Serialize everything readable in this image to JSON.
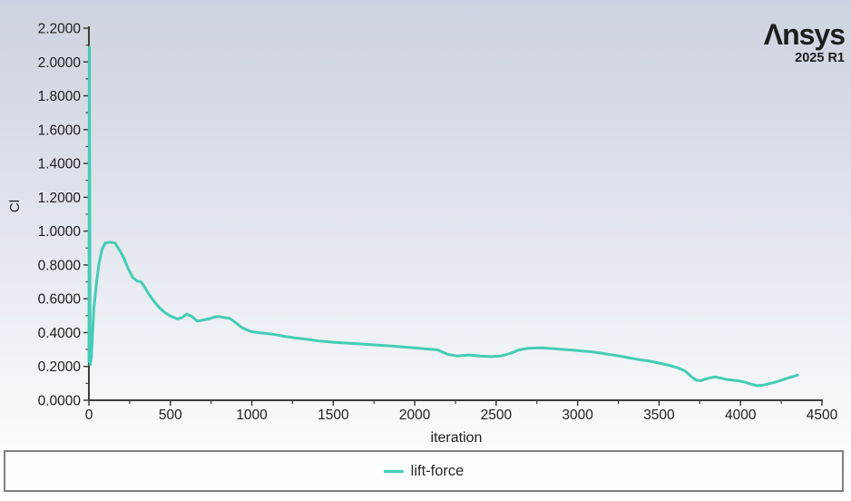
{
  "branding": {
    "name": "Ansys",
    "release": "2025 R1"
  },
  "chart_data": {
    "type": "line",
    "title": "",
    "xlabel": "iteration",
    "ylabel": "Cl",
    "xlim": [
      0,
      4500
    ],
    "ylim": [
      0,
      2.2
    ],
    "x_ticks": [
      "0",
      "500",
      "1000",
      "1500",
      "2000",
      "2500",
      "3000",
      "3500",
      "4000",
      "4500"
    ],
    "y_ticks": [
      "0.0000",
      "0.2000",
      "0.4000",
      "0.6000",
      "0.8000",
      "1.0000",
      "1.2000",
      "1.4000",
      "1.6000",
      "1.8000",
      "2.0000",
      "2.2000"
    ],
    "grid": false,
    "legend_position": "bottom",
    "axis_color": "#3c3c3c",
    "series": [
      {
        "name": "lift-force",
        "color": "#45ccb4",
        "points": [
          [
            0,
            0.23
          ],
          [
            3,
            2.087
          ],
          [
            8,
            0.21
          ],
          [
            15,
            0.25
          ],
          [
            30,
            0.54
          ],
          [
            45,
            0.68
          ],
          [
            60,
            0.8
          ],
          [
            80,
            0.89
          ],
          [
            100,
            0.93
          ],
          [
            130,
            0.935
          ],
          [
            160,
            0.93
          ],
          [
            190,
            0.885
          ],
          [
            215,
            0.84
          ],
          [
            240,
            0.78
          ],
          [
            270,
            0.725
          ],
          [
            295,
            0.705
          ],
          [
            320,
            0.7
          ],
          [
            345,
            0.665
          ],
          [
            370,
            0.625
          ],
          [
            400,
            0.585
          ],
          [
            430,
            0.55
          ],
          [
            460,
            0.523
          ],
          [
            490,
            0.503
          ],
          [
            520,
            0.49
          ],
          [
            545,
            0.48
          ],
          [
            575,
            0.49
          ],
          [
            600,
            0.51
          ],
          [
            630,
            0.497
          ],
          [
            665,
            0.468
          ],
          [
            700,
            0.474
          ],
          [
            735,
            0.481
          ],
          [
            770,
            0.492
          ],
          [
            800,
            0.495
          ],
          [
            830,
            0.489
          ],
          [
            865,
            0.484
          ],
          [
            900,
            0.46
          ],
          [
            935,
            0.432
          ],
          [
            965,
            0.418
          ],
          [
            1000,
            0.405
          ],
          [
            1040,
            0.4
          ],
          [
            1080,
            0.396
          ],
          [
            1130,
            0.39
          ],
          [
            1200,
            0.378
          ],
          [
            1270,
            0.368
          ],
          [
            1340,
            0.36
          ],
          [
            1420,
            0.35
          ],
          [
            1500,
            0.343
          ],
          [
            1580,
            0.338
          ],
          [
            1660,
            0.333
          ],
          [
            1740,
            0.328
          ],
          [
            1820,
            0.323
          ],
          [
            1900,
            0.317
          ],
          [
            1980,
            0.311
          ],
          [
            2060,
            0.305
          ],
          [
            2140,
            0.298
          ],
          [
            2200,
            0.272
          ],
          [
            2260,
            0.262
          ],
          [
            2330,
            0.268
          ],
          [
            2400,
            0.262
          ],
          [
            2470,
            0.258
          ],
          [
            2530,
            0.262
          ],
          [
            2590,
            0.278
          ],
          [
            2640,
            0.298
          ],
          [
            2700,
            0.308
          ],
          [
            2780,
            0.31
          ],
          [
            2840,
            0.306
          ],
          [
            2900,
            0.301
          ],
          [
            2960,
            0.297
          ],
          [
            3020,
            0.292
          ],
          [
            3080,
            0.287
          ],
          [
            3140,
            0.279
          ],
          [
            3200,
            0.27
          ],
          [
            3260,
            0.261
          ],
          [
            3320,
            0.25
          ],
          [
            3380,
            0.24
          ],
          [
            3440,
            0.231
          ],
          [
            3500,
            0.22
          ],
          [
            3560,
            0.207
          ],
          [
            3620,
            0.19
          ],
          [
            3660,
            0.172
          ],
          [
            3700,
            0.138
          ],
          [
            3730,
            0.118
          ],
          [
            3755,
            0.116
          ],
          [
            3780,
            0.124
          ],
          [
            3810,
            0.132
          ],
          [
            3845,
            0.138
          ],
          [
            3880,
            0.131
          ],
          [
            3915,
            0.123
          ],
          [
            3950,
            0.119
          ],
          [
            3990,
            0.115
          ],
          [
            4030,
            0.106
          ],
          [
            4070,
            0.094
          ],
          [
            4105,
            0.086
          ],
          [
            4140,
            0.09
          ],
          [
            4180,
            0.099
          ],
          [
            4220,
            0.109
          ],
          [
            4260,
            0.121
          ],
          [
            4300,
            0.134
          ],
          [
            4330,
            0.143
          ],
          [
            4350,
            0.149
          ]
        ]
      }
    ]
  }
}
